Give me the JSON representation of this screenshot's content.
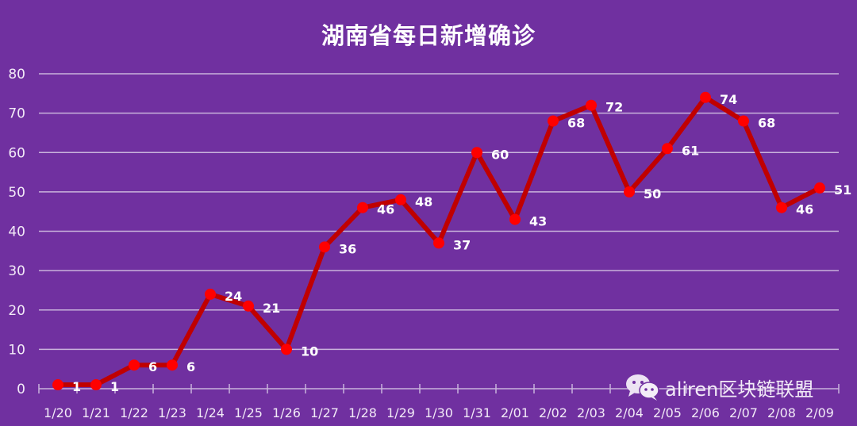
{
  "title": "湖南省每日新增确诊",
  "watermark": {
    "icon": "wechat-icon",
    "text": "aliren区块链联盟"
  },
  "colors": {
    "background": "#7030a0",
    "line": "#c00000",
    "marker": "#ff0000",
    "grid": "#c9b3dc",
    "text": "#ffffff"
  },
  "chart_data": {
    "type": "line",
    "title": "湖南省每日新增确诊",
    "xlabel": "",
    "ylabel": "",
    "ylim": [
      0,
      80
    ],
    "yticks": [
      0,
      10,
      20,
      30,
      40,
      50,
      60,
      70,
      80
    ],
    "grid": true,
    "legend": "none",
    "categories": [
      "1/20",
      "1/21",
      "1/22",
      "1/23",
      "1/24",
      "1/25",
      "1/26",
      "1/27",
      "1/28",
      "1/29",
      "1/30",
      "1/31",
      "2/01",
      "2/02",
      "2/03",
      "2/04",
      "2/05",
      "2/06",
      "2/07",
      "2/08",
      "2/09"
    ],
    "series": [
      {
        "name": "每日新增确诊",
        "values": [
          1,
          1,
          6,
          6,
          24,
          21,
          10,
          36,
          46,
          48,
          37,
          60,
          43,
          68,
          72,
          50,
          61,
          74,
          68,
          46,
          51
        ]
      }
    ]
  }
}
